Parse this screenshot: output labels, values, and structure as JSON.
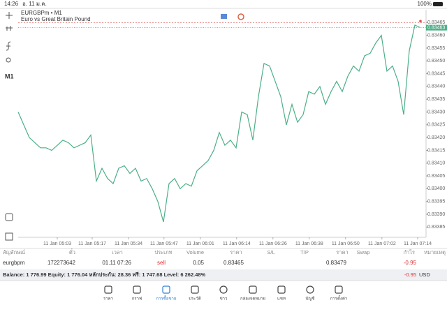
{
  "status_bar": {
    "time": "14:26",
    "date": "อ. 11 ม.ค.",
    "battery": "100%"
  },
  "toolbar": {
    "timeframe": "M1"
  },
  "chart_data": {
    "type": "line",
    "title": "EURGBPm • M1",
    "subtitle": "Euro vs Great Britain Pound",
    "color": "#4caf87",
    "values": [
      0.8343,
      0.83425,
      0.8342,
      0.83418,
      0.83416,
      0.83416,
      0.83415,
      0.83417,
      0.83419,
      0.83418,
      0.83416,
      0.83417,
      0.83418,
      0.83421,
      0.83403,
      0.83408,
      0.83404,
      0.83402,
      0.83408,
      0.83409,
      0.83406,
      0.83408,
      0.83403,
      0.83404,
      0.834,
      0.83395,
      0.83387,
      0.83402,
      0.83404,
      0.834,
      0.83402,
      0.83401,
      0.83407,
      0.83409,
      0.83411,
      0.83415,
      0.83422,
      0.83417,
      0.83419,
      0.83416,
      0.8343,
      0.83429,
      0.83419,
      0.83436,
      0.83449,
      0.83448,
      0.83442,
      0.83436,
      0.83425,
      0.83433,
      0.83426,
      0.83429,
      0.83438,
      0.83437,
      0.8344,
      0.83433,
      0.83438,
      0.83442,
      0.83438,
      0.83444,
      0.83448,
      0.83446,
      0.83452,
      0.83453,
      0.83457,
      0.8346,
      0.83446,
      0.83448,
      0.83442,
      0.83429,
      0.83454,
      0.83464,
      0.83463
    ],
    "xlim": [
      0,
      73
    ],
    "xticks": [
      {
        "value": 7,
        "label": "11 Jan 05:03"
      },
      {
        "value": 13.25,
        "label": "11 Jan 05:17"
      },
      {
        "value": 19.75,
        "label": "11 Jan 05:34"
      },
      {
        "value": 26.1,
        "label": "11 Jan 05:47"
      },
      {
        "value": 32.6,
        "label": "11 Jan 06:01"
      },
      {
        "value": 39.1,
        "label": "11 Jan 06:14"
      },
      {
        "value": 45.6,
        "label": "11 Jan 06:26"
      },
      {
        "value": 52.1,
        "label": "11 Jan 06:38"
      },
      {
        "value": 58.6,
        "label": "11 Jan 06:50"
      },
      {
        "value": 65.1,
        "label": "11 Jan 07:02"
      },
      {
        "value": 71.5,
        "label": "11 Jan 07:14"
      }
    ],
    "ylim": [
      0.83381,
      0.8347
    ],
    "yticks": [
      0.83465,
      {
        "value": 0.8346,
        "label": "0.83460"
      },
      0.83455,
      {
        "value": 0.8345,
        "label": "0.83450"
      },
      0.83445,
      {
        "value": 0.8344,
        "label": "0.83440"
      },
      0.83435,
      {
        "value": 0.8343,
        "label": "0.83430"
      },
      0.83425,
      {
        "value": 0.8342,
        "label": "0.83420"
      },
      0.83415,
      {
        "value": 0.8341,
        "label": "0.83410"
      },
      0.83405,
      {
        "value": 0.834,
        "label": "0.83400"
      },
      0.83395,
      {
        "value": 0.8339,
        "label": "0.83390"
      },
      0.83385
    ],
    "order_line": {
      "value": 0.83465,
      "color": "#e05050"
    },
    "bid_line": {
      "value": 0.83463,
      "label": "0.83463",
      "color": "#4caf87"
    }
  },
  "positions": {
    "header": [
      "สัญลักษณ์",
      "ตั๋ว",
      "เวลา",
      "ประเภท",
      "Volume",
      "ราคา",
      "S/L",
      "T/P",
      "ราคา",
      "Swap",
      "กำไร",
      "หมายเหตุ"
    ],
    "row": {
      "symbol": "eurgbpm",
      "ticket": "172273642",
      "time": "01.11 07:26",
      "type": "sell",
      "volume": "0.05",
      "open_price": "0.83465",
      "price": "0.83479",
      "profit": "-0.95"
    }
  },
  "account": {
    "summary": "Balance: 1 776.99 Equity: 1 776.04 หลักประกัน: 28.36 ฟรี: 1 747.68 Level: 6 262.48%",
    "profit": "-0.95",
    "currency": "USD"
  },
  "tabs": [
    "ราคา",
    "กราฟ",
    "การซื้อขาย",
    "ประวัติ",
    "ข่าว",
    "กล่องจดหมาย",
    "แชท",
    "บัญชี",
    "การตั้งค่า"
  ]
}
